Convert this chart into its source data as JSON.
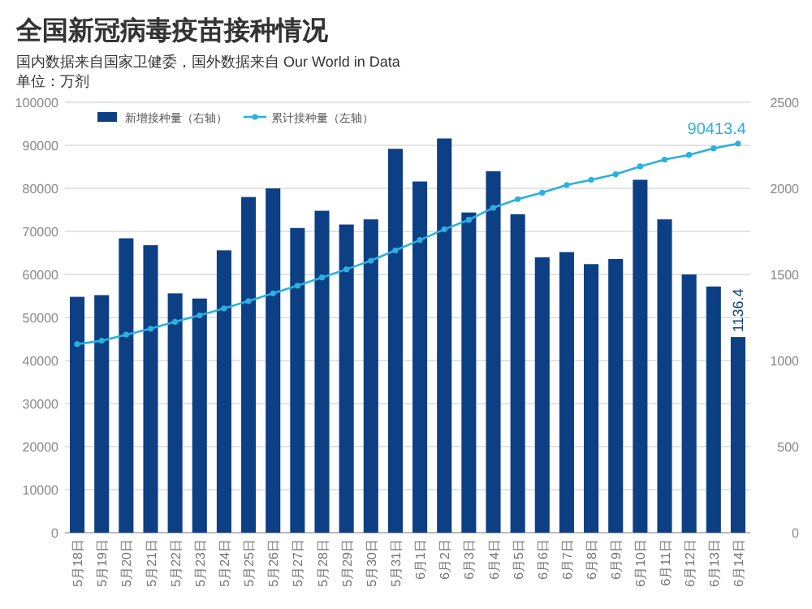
{
  "chart_data": {
    "type": "bar",
    "title": "全国新冠病毒疫苗接种情况",
    "subtitle": "国内数据来自国家卫健委，国外数据来自 Our World in Data",
    "annotations": [
      "单位：万剂"
    ],
    "categories": [
      "5月18日",
      "5月19日",
      "5月20日",
      "5月21日",
      "5月22日",
      "5月23日",
      "5月24日",
      "5月25日",
      "5月26日",
      "5月27日",
      "5月28日",
      "5月29日",
      "5月30日",
      "5月31日",
      "6月1日",
      "6月2日",
      "6月3日",
      "6月4日",
      "6月5日",
      "6月6日",
      "6月7日",
      "6月8日",
      "6月9日",
      "6月10日",
      "6月11日",
      "6月12日",
      "6月13日",
      "6月14日"
    ],
    "series": [
      {
        "name": "新增接种量（右轴）",
        "axis": "y2",
        "color": "#0d3f85",
        "values": [
          1370,
          1380,
          1710,
          1670,
          1390,
          1360,
          1640,
          1950,
          2000,
          1770,
          1870,
          1790,
          1820,
          2230,
          2040,
          2290,
          1860,
          2100,
          1850,
          1600,
          1630,
          1560,
          1590,
          2050,
          1820,
          1500,
          1430,
          1136.4
        ],
        "value_labels": [
          null,
          null,
          null,
          null,
          null,
          null,
          null,
          null,
          null,
          null,
          null,
          null,
          null,
          null,
          null,
          null,
          null,
          null,
          null,
          null,
          null,
          null,
          null,
          null,
          null,
          null,
          null,
          "1136.4"
        ]
      },
      {
        "name": "累计接种量（左轴）",
        "type": "line",
        "color": "#2bb0e0",
        "marker": "circle",
        "values": [
          43800,
          44600,
          46000,
          47400,
          49000,
          50500,
          52100,
          53800,
          55600,
          57400,
          59300,
          61200,
          63200,
          65600,
          68000,
          70500,
          72700,
          75500,
          77500,
          79000,
          80800,
          82000,
          83300,
          85100,
          86700,
          87800,
          89300,
          90413.4
        ],
        "value_labels": [
          null,
          null,
          null,
          null,
          null,
          null,
          null,
          null,
          null,
          null,
          null,
          null,
          null,
          null,
          null,
          null,
          null,
          null,
          null,
          null,
          null,
          null,
          null,
          null,
          null,
          null,
          null,
          "90413.4"
        ]
      }
    ],
    "ylim": [
      0,
      100000
    ],
    "yticks": [
      0,
      10000,
      20000,
      30000,
      40000,
      50000,
      60000,
      70000,
      80000,
      90000,
      100000
    ],
    "y2lim": [
      0,
      2500
    ],
    "y2ticks": [
      0,
      500,
      1000,
      1500,
      2000,
      2500
    ],
    "grid": "y",
    "legend": "top left"
  }
}
